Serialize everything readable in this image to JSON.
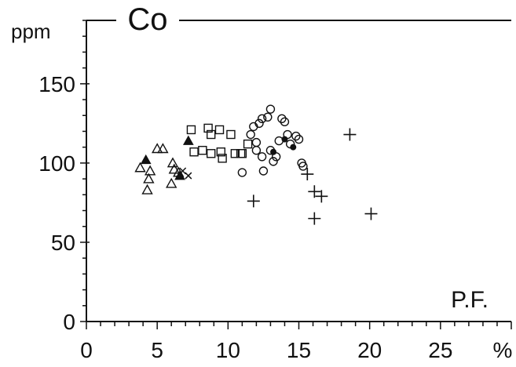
{
  "chart_data": {
    "type": "scatter",
    "title": "Co",
    "ylabel": "ppm",
    "xlabel": "P.F.",
    "x_unit": "%",
    "xlim": [
      0,
      30
    ],
    "ylim": [
      0,
      190
    ],
    "x_ticks": [
      0,
      5,
      10,
      15,
      20,
      25
    ],
    "x_tick_labels": [
      "0",
      "5",
      "10",
      "15",
      "20",
      "25"
    ],
    "y_ticks": [
      0,
      50,
      100,
      150
    ],
    "y_tick_labels": [
      "0",
      "50",
      "100",
      "150"
    ],
    "grid": false,
    "series": [
      {
        "marker": "triangle-open",
        "points": [
          [
            3.8,
            97
          ],
          [
            4.4,
            90
          ],
          [
            4.5,
            95
          ],
          [
            4.3,
            83
          ],
          [
            5.0,
            109
          ],
          [
            5.4,
            109
          ],
          [
            6.1,
            100
          ],
          [
            6.0,
            87
          ],
          [
            6.2,
            96
          ],
          [
            6.5,
            94
          ]
        ]
      },
      {
        "marker": "triangle-filled",
        "points": [
          [
            4.2,
            102
          ],
          [
            7.2,
            114
          ],
          [
            6.6,
            92
          ]
        ]
      },
      {
        "marker": "cross-x",
        "points": [
          [
            6.8,
            95
          ],
          [
            7.2,
            92
          ]
        ]
      },
      {
        "marker": "square-open",
        "points": [
          [
            7.4,
            121
          ],
          [
            7.6,
            107
          ],
          [
            8.2,
            108
          ],
          [
            8.6,
            122
          ],
          [
            8.8,
            118
          ],
          [
            9.4,
            121
          ],
          [
            8.8,
            106
          ],
          [
            9.5,
            107
          ],
          [
            9.6,
            103
          ],
          [
            10.2,
            118
          ],
          [
            10.5,
            106
          ],
          [
            11.0,
            106
          ],
          [
            11.4,
            112
          ],
          [
            10.9,
            106
          ]
        ]
      },
      {
        "marker": "circle-open",
        "points": [
          [
            11.0,
            94
          ],
          [
            11.6,
            118
          ],
          [
            11.8,
            123
          ],
          [
            12.0,
            113
          ],
          [
            12.2,
            125
          ],
          [
            12.4,
            128
          ],
          [
            12.0,
            108
          ],
          [
            12.4,
            104
          ],
          [
            12.5,
            95
          ],
          [
            12.8,
            129
          ],
          [
            13.0,
            134
          ],
          [
            13.0,
            108
          ],
          [
            13.2,
            101
          ],
          [
            13.4,
            104
          ],
          [
            13.6,
            114
          ],
          [
            13.8,
            128
          ],
          [
            14.0,
            126
          ],
          [
            14.2,
            118
          ],
          [
            14.4,
            112
          ],
          [
            14.8,
            117
          ],
          [
            15.0,
            115
          ],
          [
            15.2,
            100
          ],
          [
            15.3,
            98
          ]
        ]
      },
      {
        "marker": "circle-filled",
        "points": [
          [
            13.2,
            107
          ],
          [
            14.0,
            115
          ],
          [
            14.6,
            110
          ]
        ]
      },
      {
        "marker": "plus",
        "points": [
          [
            11.8,
            76
          ],
          [
            15.6,
            93
          ],
          [
            16.1,
            82
          ],
          [
            16.6,
            79
          ],
          [
            16.1,
            65
          ],
          [
            18.6,
            118
          ],
          [
            20.1,
            68
          ]
        ]
      }
    ]
  }
}
